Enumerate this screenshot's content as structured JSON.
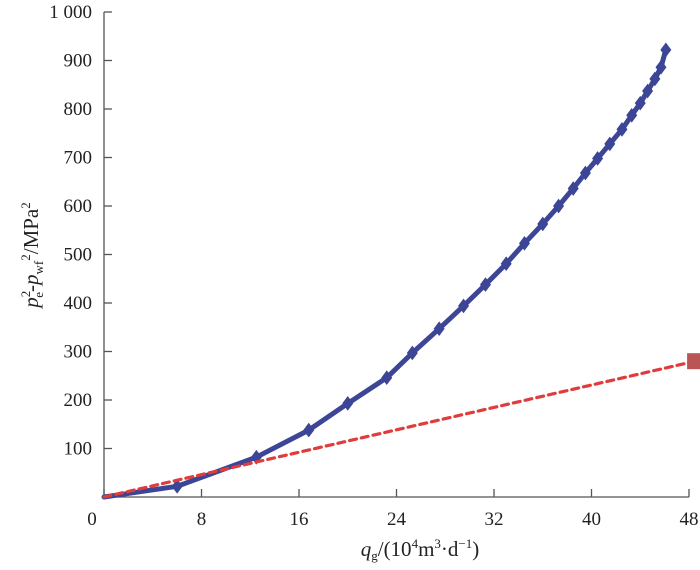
{
  "chart_data": {
    "type": "line",
    "x": [
      0,
      6,
      12.5,
      16.8,
      20,
      23.2,
      25.3,
      27.5,
      29.5,
      31.3,
      33,
      34.5,
      36,
      37.3,
      38.5,
      39.5,
      40.5,
      41.5,
      42.5,
      43.3,
      44,
      44.6,
      45.2,
      45.7,
      46.1
    ],
    "series": [
      {
        "color": "#3d4596",
        "marker": "diamond",
        "line_style": "solid",
        "values": [
          0,
          22,
          82,
          138,
          193,
          246,
          297,
          347,
          394,
          438,
          481,
          523,
          563,
          600,
          636,
          668,
          698,
          728,
          758,
          787,
          812,
          837,
          862,
          886,
          922
        ]
      },
      {
        "color": "#e03c3c",
        "marker": "square",
        "marker_color": "#b95555",
        "line_style": "dashed",
        "x": [
          0,
          48.5
        ],
        "values": [
          0,
          280
        ]
      }
    ],
    "xlim": [
      0,
      48
    ],
    "ylim": [
      0,
      1000
    ],
    "xticks": [
      {
        "value": 0,
        "label": "0"
      },
      {
        "value": 8,
        "label": "8"
      },
      {
        "value": 16,
        "label": "16"
      },
      {
        "value": 24,
        "label": "24"
      },
      {
        "value": 32,
        "label": "32"
      },
      {
        "value": 40,
        "label": "40"
      },
      {
        "value": 48,
        "label": "48"
      }
    ],
    "yticks": [
      {
        "value": 100,
        "label": "100"
      },
      {
        "value": 200,
        "label": "200"
      },
      {
        "value": 300,
        "label": "300"
      },
      {
        "value": 400,
        "label": "400"
      },
      {
        "value": 500,
        "label": "500"
      },
      {
        "value": 600,
        "label": "600"
      },
      {
        "value": 700,
        "label": "700"
      },
      {
        "value": 800,
        "label": "800"
      },
      {
        "value": 900,
        "label": "900"
      },
      {
        "value": 1000,
        "label": "1 000"
      }
    ],
    "xlabel": {
      "q": "q",
      "q_sub": "g",
      "open": "/(10",
      "sup1": "4",
      "m": "m",
      "sup2": "3",
      "dot": "·d",
      "sup3": "−1",
      "close": ")"
    },
    "ylabel": {
      "p1": "p",
      "p1_sub": "e",
      "p1_sup": "2",
      "dash": "-",
      "p2": "p",
      "p2_sub": "wf",
      "p2_sup": "2",
      "unit": "/MPa",
      "unit_sup": "2"
    },
    "grid": false,
    "legend": "none"
  }
}
